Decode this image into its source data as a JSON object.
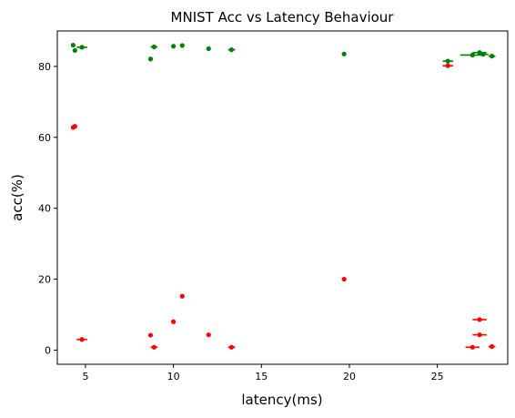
{
  "chart_data": {
    "type": "scatter",
    "title": "MNIST Acc vs Latency Behaviour",
    "xlabel": "latency(ms)",
    "ylabel": "acc(%)",
    "xlim": [
      3.4,
      29.0
    ],
    "ylim": [
      -4.0,
      90.0
    ],
    "xticks": [
      5,
      10,
      15,
      20,
      25
    ],
    "yticks": [
      0,
      20,
      40,
      60,
      80
    ],
    "grid": false,
    "legend": "none",
    "series": [
      {
        "color": "#008000",
        "points": [
          {
            "x": 4.3,
            "y": 86.0
          },
          {
            "x": 4.4,
            "y": 84.5
          },
          {
            "x": 4.8,
            "y": 85.4,
            "xerr": 0.3
          },
          {
            "x": 8.7,
            "y": 82.1
          },
          {
            "x": 8.9,
            "y": 85.5,
            "xerr": 0.2
          },
          {
            "x": 10.0,
            "y": 85.7
          },
          {
            "x": 10.5,
            "y": 85.9
          },
          {
            "x": 12.0,
            "y": 85.0
          },
          {
            "x": 13.3,
            "y": 84.7,
            "xerr": 0.2
          },
          {
            "x": 19.7,
            "y": 83.5,
            "xerr": 0.1
          },
          {
            "x": 25.6,
            "y": 81.5,
            "xerr": 0.3
          },
          {
            "x": 27.0,
            "y": 83.2,
            "xerr": 0.7
          },
          {
            "x": 27.4,
            "y": 83.9,
            "xerr": 0.4
          },
          {
            "x": 27.6,
            "y": 83.4,
            "xerr": 0.3
          },
          {
            "x": 28.1,
            "y": 82.9,
            "xerr": 0.2
          }
        ]
      },
      {
        "color": "#ff0000",
        "points": [
          {
            "x": 4.3,
            "y": 62.8
          },
          {
            "x": 4.4,
            "y": 63.1
          },
          {
            "x": 4.8,
            "y": 3.0,
            "xerr": 0.3
          },
          {
            "x": 8.7,
            "y": 4.2
          },
          {
            "x": 8.9,
            "y": 0.8,
            "xerr": 0.2
          },
          {
            "x": 10.0,
            "y": 8.0
          },
          {
            "x": 10.5,
            "y": 15.2
          },
          {
            "x": 12.0,
            "y": 4.3
          },
          {
            "x": 13.3,
            "y": 0.8,
            "xerr": 0.2
          },
          {
            "x": 19.7,
            "y": 20.0,
            "xerr": 0.1
          },
          {
            "x": 25.6,
            "y": 80.2,
            "xerr": 0.3
          },
          {
            "x": 27.0,
            "y": 0.8,
            "xerr": 0.4
          },
          {
            "x": 27.4,
            "y": 8.6,
            "xerr": 0.4
          },
          {
            "x": 27.4,
            "y": 4.3,
            "xerr": 0.4
          },
          {
            "x": 28.1,
            "y": 1.0,
            "xerr": 0.2
          }
        ]
      }
    ]
  }
}
